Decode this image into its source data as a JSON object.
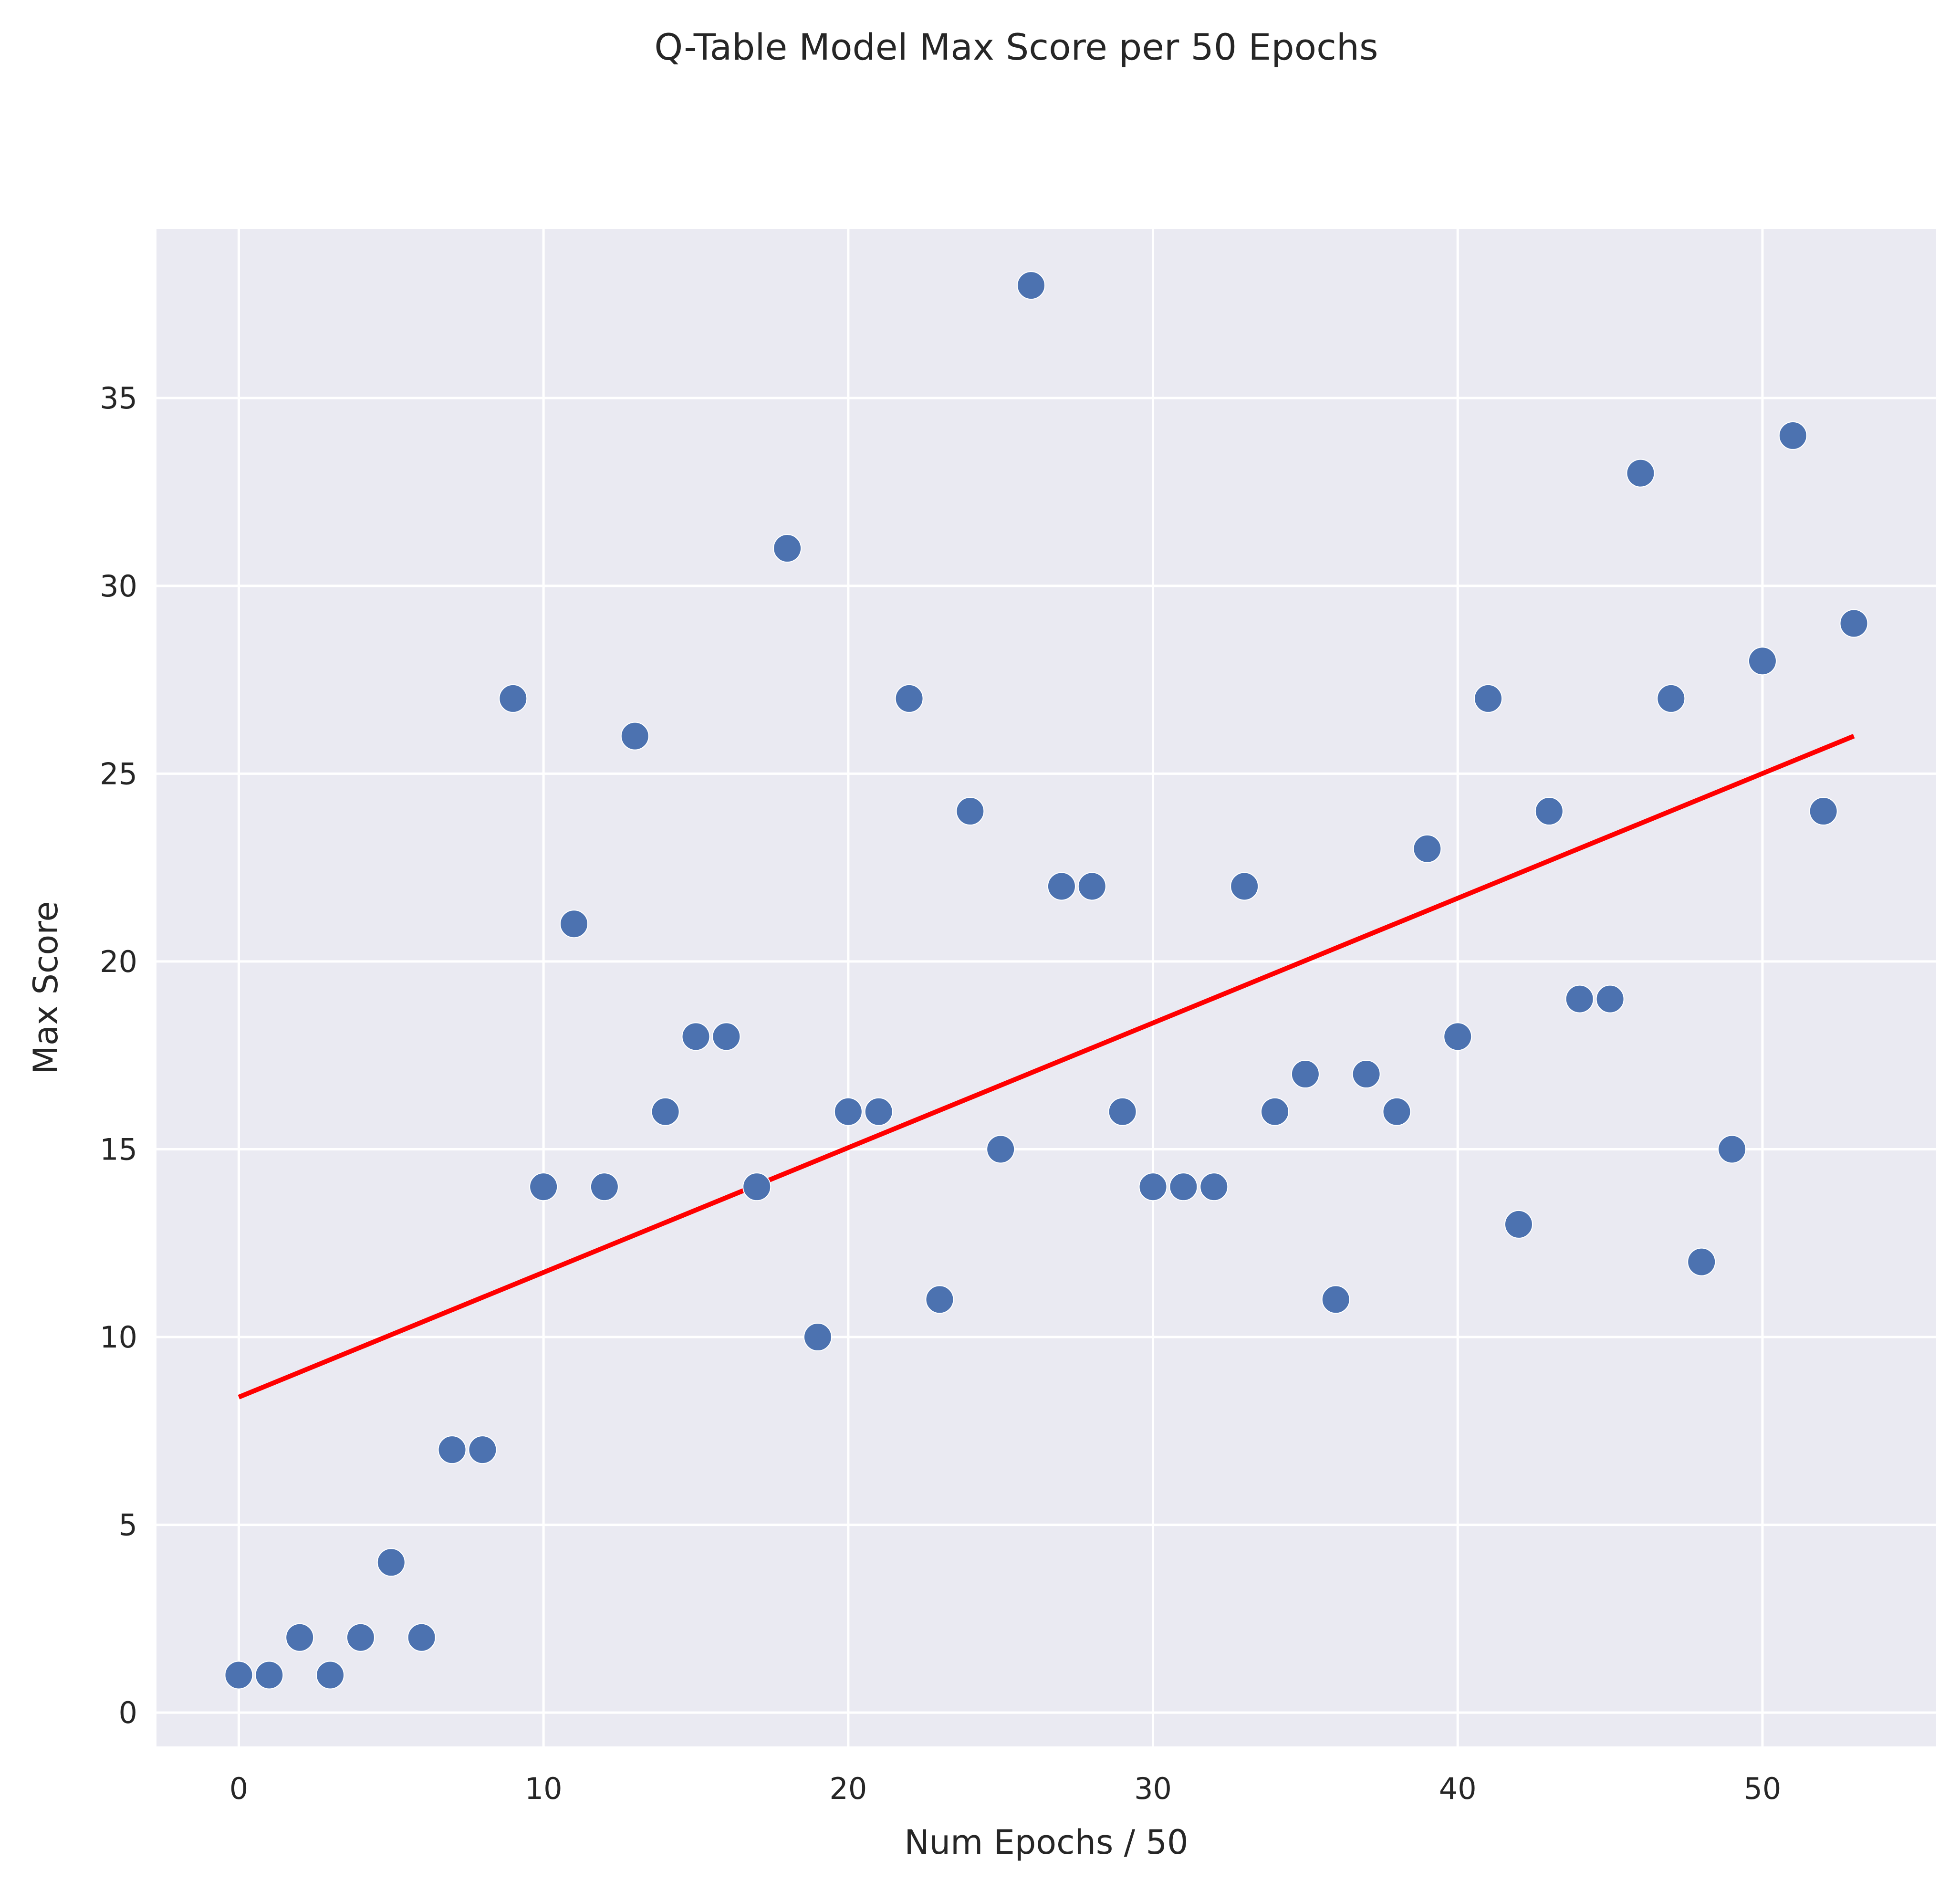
{
  "chart_data": {
    "type": "scatter",
    "title": "Q-Table Model Max Score per 50 Epochs",
    "xlabel": "Num Epochs / 50",
    "ylabel": "Max Score",
    "xlim": [
      -2.7,
      55.7
    ],
    "ylim": [
      -0.9,
      39.5
    ],
    "xticks": [
      0,
      10,
      20,
      30,
      40,
      50
    ],
    "yticks": [
      0,
      5,
      10,
      15,
      20,
      25,
      30,
      35
    ],
    "grid": true,
    "legend": "none",
    "background_color": "#eaeaf2",
    "point_color": "#4c72b0",
    "trend_color": "#ff0000",
    "x": [
      0,
      1,
      2,
      3,
      4,
      5,
      6,
      7,
      8,
      9,
      10,
      11,
      12,
      13,
      14,
      15,
      16,
      17,
      18,
      19,
      20,
      21,
      22,
      23,
      24,
      25,
      26,
      27,
      28,
      29,
      30,
      31,
      32,
      33,
      34,
      35,
      36,
      37,
      38,
      39,
      40,
      41,
      42,
      43,
      44,
      45,
      46,
      47,
      48,
      49,
      50,
      51,
      52,
      53
    ],
    "y": [
      1,
      1,
      2,
      1,
      2,
      4,
      2,
      7,
      7,
      27,
      14,
      21,
      14,
      26,
      16,
      18,
      18,
      14,
      31,
      10,
      16,
      16,
      27,
      11,
      24,
      15,
      38,
      22,
      22,
      16,
      14,
      14,
      14,
      22,
      16,
      17,
      11,
      17,
      16,
      23,
      18,
      27,
      13,
      24,
      19,
      19,
      33,
      27,
      12,
      15,
      28,
      34,
      24,
      29
    ],
    "trendline": {
      "x": [
        0,
        53
      ],
      "y": [
        8.4,
        26.0
      ]
    }
  }
}
